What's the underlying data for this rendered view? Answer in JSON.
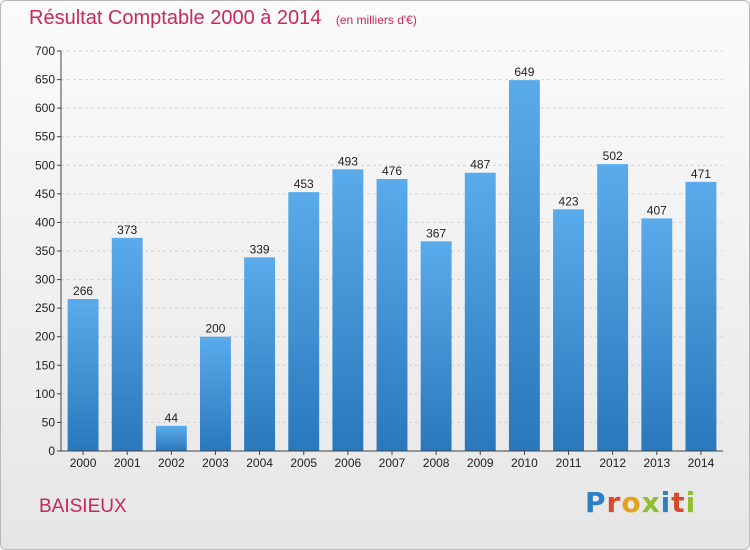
{
  "title": "Résultat Comptable 2000 à 2014",
  "unit": "(en milliers d'€)",
  "commune": "BAISIEUX",
  "brand": {
    "text": "Proxiti",
    "colors": [
      "#2e7fc4",
      "#d94a2b",
      "#e6a11a",
      "#8fbf2c",
      "#2e7fc4",
      "#d94a2b",
      "#8fbf2c"
    ]
  },
  "chart_data": {
    "type": "bar",
    "title": "Résultat Comptable 2000 à 2014",
    "xlabel": "",
    "ylabel": "",
    "ylim": [
      0,
      700
    ],
    "yticks": [
      0,
      50,
      100,
      150,
      200,
      250,
      300,
      350,
      400,
      450,
      500,
      550,
      600,
      650,
      700
    ],
    "categories": [
      "2000",
      "2001",
      "2002",
      "2003",
      "2004",
      "2005",
      "2006",
      "2007",
      "2008",
      "2009",
      "2010",
      "2011",
      "2012",
      "2013",
      "2014"
    ],
    "values": [
      266,
      373,
      44,
      200,
      339,
      453,
      493,
      476,
      367,
      487,
      649,
      423,
      502,
      407,
      471
    ],
    "bar_color": "#3d8ed4"
  }
}
